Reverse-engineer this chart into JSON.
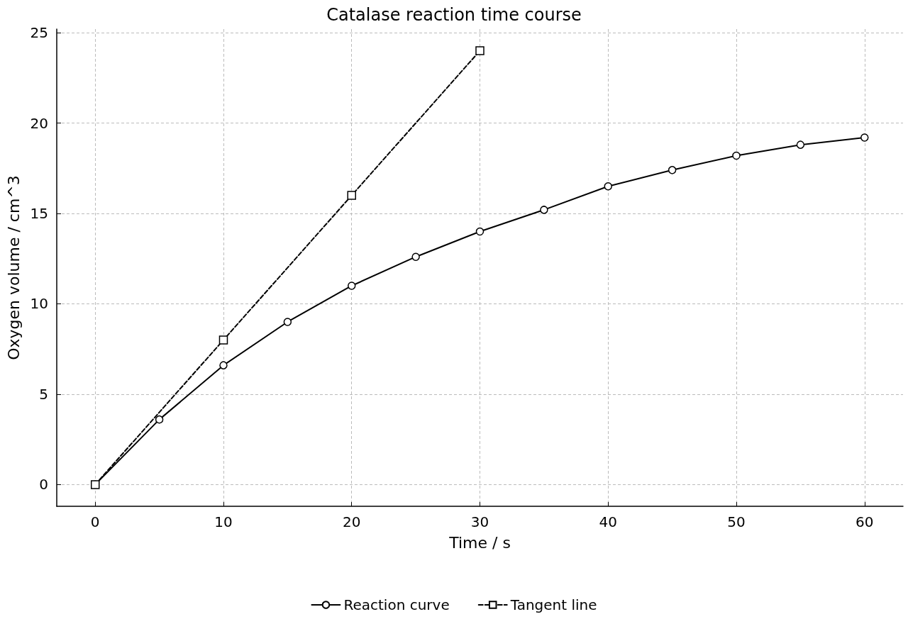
{
  "chart_data": {
    "type": "line",
    "title": "Catalase reaction time course",
    "xlabel": "Time / s",
    "ylabel": "Oxygen volume / cm^3",
    "series": [
      {
        "name": "Reaction curve",
        "color": "#000000",
        "marker": "circle",
        "line_style": "solid",
        "x": [
          0,
          5,
          10,
          15,
          20,
          25,
          30,
          35,
          40,
          45,
          50,
          55,
          60
        ],
        "values": [
          0,
          3.6,
          6.6,
          9.0,
          11.0,
          12.6,
          14.0,
          15.2,
          16.5,
          17.4,
          18.2,
          18.8,
          19.2
        ]
      },
      {
        "name": "Tangent line",
        "color": "#000000",
        "marker": "square",
        "line_style": "dashed",
        "x": [
          0,
          10,
          20,
          30
        ],
        "values": [
          0,
          8,
          16,
          24
        ]
      }
    ],
    "xlim": [
      -3,
      63
    ],
    "xticks": [
      0,
      10,
      20,
      30,
      40,
      50,
      60
    ],
    "ylim": [
      -1.2,
      25.2
    ],
    "yticks": [
      0,
      5,
      10,
      15,
      20,
      25
    ],
    "grid": true,
    "legend": "bottom"
  }
}
